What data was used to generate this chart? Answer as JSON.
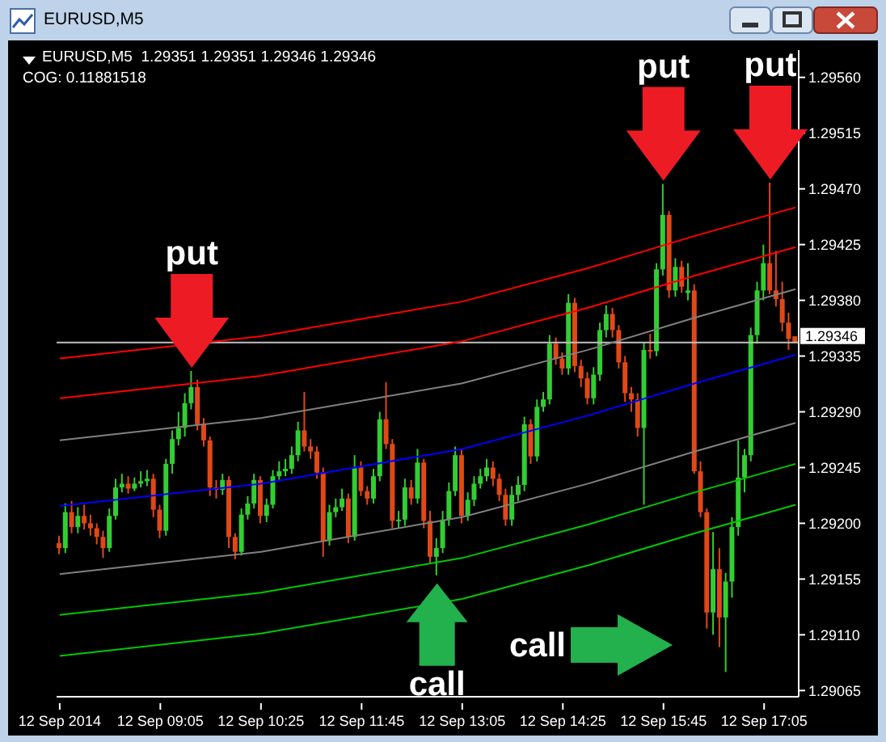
{
  "chart_data": {
    "type": "candlestick",
    "title": "EURUSD,M5",
    "subtitle": "EURUSD,M5  1.29351 1.29351 1.29346 1.29346",
    "annotations": [
      "COG: 0.11881518",
      {
        "text": "put",
        "y": 1.29323
      },
      {
        "text": "put",
        "y": 1.29474
      },
      {
        "text": "put",
        "y": 1.29475
      },
      {
        "text": "call",
        "y": 1.29158
      },
      "call"
    ],
    "categories": [
      "12 Sep 2014",
      null,
      null,
      null,
      null,
      null,
      null,
      null,
      null,
      null,
      null,
      null,
      null,
      null,
      null,
      null,
      "12 Sep 09:05",
      null,
      null,
      null,
      null,
      null,
      null,
      null,
      null,
      null,
      null,
      null,
      null,
      null,
      null,
      null,
      "12 Sep 10:25",
      null,
      null,
      null,
      null,
      null,
      null,
      null,
      null,
      null,
      null,
      null,
      null,
      null,
      null,
      null,
      "12 Sep 11:45",
      null,
      null,
      null,
      null,
      null,
      null,
      null,
      null,
      null,
      null,
      null,
      null,
      null,
      null,
      null,
      "12 Sep 13:05",
      null,
      null,
      null,
      null,
      null,
      null,
      null,
      null,
      null,
      null,
      null,
      null,
      null,
      null,
      null,
      "12 Sep 14:25",
      null,
      null,
      null,
      null,
      null,
      null,
      null,
      null,
      null,
      null,
      null,
      null,
      null,
      null,
      null,
      "12 Sep 15:45",
      null,
      null,
      null,
      null,
      null,
      null,
      null,
      null,
      null,
      null,
      null,
      null,
      null,
      null,
      null,
      "12 Sep 17:05",
      null,
      null,
      null,
      null,
      null
    ],
    "colors": [
      "#e04818",
      "#32cd32",
      "#e04818",
      "#32cd32",
      "#e04818",
      "#e04818",
      "#e04818",
      "#e04818",
      "#32cd32",
      "#32cd32",
      "#32cd32",
      "#e04818",
      "#32cd32",
      "#32cd32",
      "#32cd32",
      "#e04818",
      "#e04818",
      "#32cd32",
      "#32cd32",
      "#32cd32",
      "#32cd32",
      "#32cd32",
      "#e04818",
      "#e04818",
      "#e04818",
      "#e04818",
      "#32cd32",
      "#e04818",
      "#e04818",
      "#32cd32",
      "#32cd32",
      "#32cd32",
      "#e04818",
      "#32cd32",
      "#32cd32",
      "#32cd32",
      "#32cd32",
      "#32cd32",
      "#32cd32",
      "#e04818",
      "#e04818",
      "#e04818",
      "#e04818",
      "#32cd32",
      "#32cd32",
      "#32cd32",
      "#e04818",
      "#32cd32",
      "#e04818",
      "#e04818",
      "#32cd32",
      "#32cd32",
      "#e04818",
      "#e04818",
      "#32cd32",
      "#32cd32",
      "#e04818",
      "#32cd32",
      "#e04818",
      "#e04818",
      "#32cd32",
      "#32cd32",
      "#32cd32",
      "#32cd32",
      "#e04818",
      "#32cd32",
      "#32cd32",
      "#32cd32",
      "#32cd32",
      "#e04818",
      "#e04818",
      "#e04818",
      "#32cd32",
      "#32cd32",
      "#32cd32",
      "#e04818",
      "#32cd32",
      "#32cd32",
      "#32cd32",
      "#e04818",
      "#e04818",
      "#32cd32",
      "#e04818",
      "#e04818",
      "#e04818",
      "#32cd32",
      "#32cd32",
      "#32cd32",
      "#e04818",
      "#e04818",
      "#e04818",
      "#e04818",
      "#e04818",
      "#32cd32",
      "#e04818",
      "#32cd32",
      "#32cd32",
      "#e04818",
      "#32cd32",
      "#e04818",
      "#32cd32",
      "#e04818",
      "#e04818",
      "#e04818",
      "#32cd32",
      "#e04818",
      "#32cd32",
      "#32cd32",
      "#32cd32",
      "#32cd32",
      "#32cd32",
      "#32cd32",
      "#32cd32",
      "#e04818",
      "#e04818",
      "#e04818",
      "#e04818",
      "#e04818"
    ],
    "ohlc": [
      [
        1.29184,
        1.2919,
        1.29175,
        1.2918
      ],
      [
        1.2918,
        1.29216,
        1.29176,
        1.29209
      ],
      [
        1.29209,
        1.29218,
        1.29192,
        1.29197
      ],
      [
        1.29197,
        1.29213,
        1.29192,
        1.29206
      ],
      [
        1.29206,
        1.29215,
        1.29195,
        1.292
      ],
      [
        1.292,
        1.29207,
        1.2919,
        1.29196
      ],
      [
        1.29196,
        1.292,
        1.29183,
        1.29189
      ],
      [
        1.29189,
        1.29194,
        1.29172,
        1.2918
      ],
      [
        1.2918,
        1.29212,
        1.29177,
        1.29206
      ],
      [
        1.29206,
        1.29236,
        1.29203,
        1.29229
      ],
      [
        1.29229,
        1.2924,
        1.29225,
        1.29232
      ],
      [
        1.29232,
        1.29238,
        1.29224,
        1.29228
      ],
      [
        1.29228,
        1.29237,
        1.29226,
        1.29232
      ],
      [
        1.29232,
        1.29242,
        1.29229,
        1.29234
      ],
      [
        1.29234,
        1.29243,
        1.2923,
        1.29236
      ],
      [
        1.29236,
        1.2924,
        1.29205,
        1.29211
      ],
      [
        1.29211,
        1.29215,
        1.29188,
        1.29194
      ],
      [
        1.29194,
        1.29252,
        1.2919,
        1.29248
      ],
      [
        1.29248,
        1.29275,
        1.2924,
        1.29268
      ],
      [
        1.29268,
        1.2929,
        1.29263,
        1.29277
      ],
      [
        1.29277,
        1.29305,
        1.2927,
        1.29297
      ],
      [
        1.29297,
        1.29323,
        1.29292,
        1.2931
      ],
      [
        1.2931,
        1.29316,
        1.29275,
        1.2928
      ],
      [
        1.2928,
        1.29285,
        1.29262,
        1.29267
      ],
      [
        1.29267,
        1.2927,
        1.29222,
        1.29229
      ],
      [
        1.29229,
        1.29235,
        1.2922,
        1.29227
      ],
      [
        1.29227,
        1.2924,
        1.29223,
        1.29235
      ],
      [
        1.29235,
        1.29238,
        1.2918,
        1.29189
      ],
      [
        1.29189,
        1.29192,
        1.29171,
        1.29177
      ],
      [
        1.29177,
        1.29212,
        1.29174,
        1.29207
      ],
      [
        1.29207,
        1.29222,
        1.29203,
        1.29216
      ],
      [
        1.29216,
        1.2924,
        1.29212,
        1.29235
      ],
      [
        1.29235,
        1.29238,
        1.292,
        1.29206
      ],
      [
        1.29206,
        1.2922,
        1.29201,
        1.29215
      ],
      [
        1.29215,
        1.29243,
        1.29212,
        1.29238
      ],
      [
        1.29238,
        1.2925,
        1.29235,
        1.29242
      ],
      [
        1.29242,
        1.29252,
        1.29238,
        1.29244
      ],
      [
        1.29244,
        1.29262,
        1.2924,
        1.29255
      ],
      [
        1.29255,
        1.29282,
        1.2925,
        1.29275
      ],
      [
        1.29275,
        1.29306,
        1.29258,
        1.29262
      ],
      [
        1.29262,
        1.29268,
        1.29252,
        1.29258
      ],
      [
        1.29258,
        1.29262,
        1.29236,
        1.29241
      ],
      [
        1.29241,
        1.29245,
        1.29173,
        1.29186
      ],
      [
        1.29186,
        1.29215,
        1.29182,
        1.29209
      ],
      [
        1.29209,
        1.2922,
        1.29205,
        1.29213
      ],
      [
        1.29213,
        1.29228,
        1.2921,
        1.2922
      ],
      [
        1.2922,
        1.29224,
        1.29184,
        1.29189
      ],
      [
        1.29189,
        1.29255,
        1.29186,
        1.29245
      ],
      [
        1.29245,
        1.2925,
        1.29222,
        1.29226
      ],
      [
        1.29226,
        1.2923,
        1.29215,
        1.2922
      ],
      [
        1.2922,
        1.29244,
        1.29216,
        1.29238
      ],
      [
        1.29238,
        1.2929,
        1.29234,
        1.29284
      ],
      [
        1.29284,
        1.29314,
        1.2926,
        1.29264
      ],
      [
        1.29264,
        1.29268,
        1.29196,
        1.29202
      ],
      [
        1.29202,
        1.2921,
        1.29196,
        1.29203
      ],
      [
        1.29203,
        1.29236,
        1.29198,
        1.29229
      ],
      [
        1.29229,
        1.29235,
        1.29215,
        1.2922
      ],
      [
        1.2922,
        1.2926,
        1.29216,
        1.29249
      ],
      [
        1.29249,
        1.29252,
        1.29196,
        1.29202
      ],
      [
        1.29202,
        1.2921,
        1.29168,
        1.29173
      ],
      [
        1.29173,
        1.29188,
        1.29158,
        1.2918
      ],
      [
        1.2918,
        1.2921,
        1.29176,
        1.29203
      ],
      [
        1.29203,
        1.29233,
        1.29198,
        1.29226
      ],
      [
        1.29226,
        1.29262,
        1.29222,
        1.29255
      ],
      [
        1.29255,
        1.2926,
        1.292,
        1.29206
      ],
      [
        1.29206,
        1.29225,
        1.29202,
        1.29219
      ],
      [
        1.29219,
        1.29238,
        1.29214,
        1.29232
      ],
      [
        1.29232,
        1.29244,
        1.29228,
        1.29238
      ],
      [
        1.29238,
        1.29252,
        1.29234,
        1.29245
      ],
      [
        1.29245,
        1.2925,
        1.2923,
        1.29236
      ],
      [
        1.29236,
        1.2924,
        1.29218,
        1.29223
      ],
      [
        1.29223,
        1.29228,
        1.29198,
        1.29203
      ],
      [
        1.29203,
        1.2923,
        1.29198,
        1.29223
      ],
      [
        1.29223,
        1.29238,
        1.29218,
        1.29231
      ],
      [
        1.29231,
        1.29286,
        1.29226,
        1.2928
      ],
      [
        1.2928,
        1.29284,
        1.29248,
        1.29254
      ],
      [
        1.29254,
        1.293,
        1.2925,
        1.29294
      ],
      [
        1.29294,
        1.29306,
        1.2929,
        1.293
      ],
      [
        1.293,
        1.29352,
        1.29296,
        1.29345
      ],
      [
        1.29345,
        1.2935,
        1.29328,
        1.29333
      ],
      [
        1.29333,
        1.29338,
        1.2932,
        1.29325
      ],
      [
        1.29325,
        1.29385,
        1.2932,
        1.29378
      ],
      [
        1.29378,
        1.29382,
        1.29322,
        1.29327
      ],
      [
        1.29327,
        1.29332,
        1.2931,
        1.29317
      ],
      [
        1.29317,
        1.29322,
        1.29296,
        1.29301
      ],
      [
        1.29301,
        1.29326,
        1.29296,
        1.2932
      ],
      [
        1.2932,
        1.29362,
        1.29315,
        1.29356
      ],
      [
        1.29356,
        1.29376,
        1.2935,
        1.29369
      ],
      [
        1.29369,
        1.29374,
        1.2935,
        1.29356
      ],
      [
        1.29356,
        1.2936,
        1.29325,
        1.2933
      ],
      [
        1.2933,
        1.29335,
        1.29298,
        1.29305
      ],
      [
        1.29305,
        1.2931,
        1.2929,
        1.293
      ],
      [
        1.293,
        1.29305,
        1.2927,
        1.29277
      ],
      [
        1.29277,
        1.29346,
        1.29215,
        1.2934
      ],
      [
        1.2934,
        1.29353,
        1.29333,
        1.29339
      ],
      [
        1.29339,
        1.2941,
        1.29335,
        1.29405
      ],
      [
        1.29405,
        1.29474,
        1.294,
        1.29449
      ],
      [
        1.29449,
        1.29452,
        1.29382,
        1.29388
      ],
      [
        1.29388,
        1.29414,
        1.29383,
        1.29407
      ],
      [
        1.29407,
        1.29412,
        1.29386,
        1.29391
      ],
      [
        1.29386,
        1.2941,
        1.2938,
        1.29388
      ],
      [
        1.29388,
        1.29393,
        1.2924,
        1.29242
      ],
      [
        1.29242,
        1.2925,
        1.29205,
        1.29209
      ],
      [
        1.29209,
        1.29212,
        1.29115,
        1.29128
      ],
      [
        1.29128,
        1.29193,
        1.2911,
        1.29163
      ],
      [
        1.29163,
        1.2918,
        1.291,
        1.29124
      ],
      [
        1.29124,
        1.2916,
        1.2908,
        1.29153
      ],
      [
        1.29153,
        1.29205,
        1.2914,
        1.29197
      ],
      [
        1.29197,
        1.29267,
        1.2919,
        1.29237
      ],
      [
        1.29237,
        1.2926,
        1.29225,
        1.29255
      ],
      [
        1.29255,
        1.29358,
        1.2925,
        1.29352
      ],
      [
        1.29352,
        1.29395,
        1.29345,
        1.29388
      ],
      [
        1.29388,
        1.29425,
        1.2938,
        1.2941
      ],
      [
        1.2941,
        1.29475,
        1.29385,
        1.29388
      ],
      [
        1.29388,
        1.2942,
        1.29375,
        1.29381
      ],
      [
        1.29381,
        1.29395,
        1.29355,
        1.29362
      ],
      [
        1.29362,
        1.2937,
        1.2934,
        1.29349
      ],
      [
        1.29351,
        1.29351,
        1.29346,
        1.29346
      ]
    ],
    "series": [
      {
        "type": "line",
        "color": "#ff0000",
        "values": [
          1.29333,
          null,
          null,
          null,
          null,
          null,
          null,
          null,
          null,
          null,
          null,
          null,
          null,
          null,
          null,
          null,
          null,
          null,
          null,
          null,
          null,
          null,
          null,
          null,
          null,
          null,
          null,
          null,
          null,
          null,
          null,
          null,
          1.29351,
          null,
          null,
          null,
          null,
          null,
          null,
          null,
          null,
          null,
          null,
          null,
          null,
          null,
          null,
          null,
          null,
          null,
          null,
          null,
          null,
          null,
          null,
          null,
          null,
          null,
          null,
          null,
          null,
          null,
          null,
          null,
          1.29379,
          null,
          null,
          null,
          null,
          null,
          null,
          null,
          null,
          null,
          null,
          null,
          null,
          null,
          null,
          null,
          null,
          null,
          null,
          null,
          1.29406,
          null,
          null,
          null,
          null,
          null,
          null,
          null,
          null,
          null,
          null,
          null,
          null,
          null,
          null,
          null,
          null,
          1.29432,
          null,
          null,
          null,
          null,
          null,
          null,
          null,
          null,
          null,
          null,
          null,
          null,
          null,
          null,
          null,
          1.29455
        ]
      },
      {
        "type": "line",
        "color": "#ff0000",
        "values": [
          1.29301,
          null,
          null,
          null,
          null,
          null,
          null,
          null,
          null,
          null,
          null,
          null,
          null,
          null,
          null,
          null,
          null,
          null,
          null,
          null,
          null,
          null,
          null,
          null,
          null,
          null,
          null,
          null,
          null,
          null,
          null,
          null,
          1.29319,
          null,
          null,
          null,
          null,
          null,
          null,
          null,
          null,
          null,
          null,
          null,
          null,
          null,
          null,
          null,
          null,
          null,
          null,
          null,
          null,
          null,
          null,
          null,
          null,
          null,
          null,
          null,
          null,
          null,
          null,
          null,
          1.29347,
          null,
          null,
          null,
          null,
          null,
          null,
          null,
          null,
          null,
          null,
          null,
          null,
          null,
          null,
          null,
          null,
          null,
          null,
          null,
          1.29374,
          null,
          null,
          null,
          null,
          null,
          null,
          null,
          null,
          null,
          null,
          null,
          null,
          null,
          null,
          null,
          null,
          1.294,
          null,
          null,
          null,
          null,
          null,
          null,
          null,
          null,
          null,
          null,
          null,
          null,
          null,
          null,
          null,
          1.29423
        ]
      },
      {
        "type": "line",
        "color": "#808080",
        "values": [
          1.29267,
          null,
          null,
          null,
          null,
          null,
          null,
          null,
          null,
          null,
          null,
          null,
          null,
          null,
          null,
          null,
          null,
          null,
          null,
          null,
          null,
          null,
          null,
          null,
          null,
          null,
          null,
          null,
          null,
          null,
          null,
          null,
          1.29285,
          null,
          null,
          null,
          null,
          null,
          null,
          null,
          null,
          null,
          null,
          null,
          null,
          null,
          null,
          null,
          null,
          null,
          null,
          null,
          null,
          null,
          null,
          null,
          null,
          null,
          null,
          null,
          null,
          null,
          null,
          null,
          1.29313,
          null,
          null,
          null,
          null,
          null,
          null,
          null,
          null,
          null,
          null,
          null,
          null,
          null,
          null,
          null,
          null,
          null,
          null,
          null,
          1.2934,
          null,
          null,
          null,
          null,
          null,
          null,
          null,
          null,
          null,
          null,
          null,
          null,
          null,
          null,
          null,
          null,
          1.29366,
          null,
          null,
          null,
          null,
          null,
          null,
          null,
          null,
          null,
          null,
          null,
          null,
          null,
          null,
          null,
          1.29389
        ]
      },
      {
        "type": "line",
        "color": "#0000ff",
        "values": [
          1.29214,
          null,
          null,
          null,
          null,
          null,
          null,
          null,
          null,
          null,
          null,
          null,
          null,
          null,
          null,
          null,
          null,
          null,
          null,
          null,
          null,
          null,
          null,
          null,
          null,
          null,
          null,
          null,
          null,
          null,
          null,
          null,
          1.29232,
          null,
          null,
          null,
          null,
          null,
          null,
          null,
          null,
          null,
          null,
          null,
          null,
          null,
          null,
          null,
          null,
          null,
          null,
          null,
          null,
          null,
          null,
          null,
          null,
          null,
          null,
          null,
          null,
          null,
          null,
          null,
          1.2926,
          null,
          null,
          null,
          null,
          null,
          null,
          null,
          null,
          null,
          null,
          null,
          null,
          null,
          null,
          null,
          null,
          null,
          null,
          null,
          1.29287,
          null,
          null,
          null,
          null,
          null,
          null,
          null,
          null,
          null,
          null,
          null,
          null,
          null,
          null,
          null,
          null,
          1.29313,
          null,
          null,
          null,
          null,
          null,
          null,
          null,
          null,
          null,
          null,
          null,
          null,
          null,
          null,
          null,
          1.29336
        ]
      },
      {
        "type": "line",
        "color": "#808080",
        "values": [
          1.29159,
          null,
          null,
          null,
          null,
          null,
          null,
          null,
          null,
          null,
          null,
          null,
          null,
          null,
          null,
          null,
          null,
          null,
          null,
          null,
          null,
          null,
          null,
          null,
          null,
          null,
          null,
          null,
          null,
          null,
          null,
          null,
          1.29177,
          null,
          null,
          null,
          null,
          null,
          null,
          null,
          null,
          null,
          null,
          null,
          null,
          null,
          null,
          null,
          null,
          null,
          null,
          null,
          null,
          null,
          null,
          null,
          null,
          null,
          null,
          null,
          null,
          null,
          null,
          null,
          1.29205,
          null,
          null,
          null,
          null,
          null,
          null,
          null,
          null,
          null,
          null,
          null,
          null,
          null,
          null,
          null,
          null,
          null,
          null,
          null,
          1.29232,
          null,
          null,
          null,
          null,
          null,
          null,
          null,
          null,
          null,
          null,
          null,
          null,
          null,
          null,
          null,
          null,
          1.29258,
          null,
          null,
          null,
          null,
          null,
          null,
          null,
          null,
          null,
          null,
          null,
          null,
          null,
          null,
          null,
          1.29281
        ]
      },
      {
        "type": "line",
        "color": "#00c800",
        "values": [
          1.29126,
          null,
          null,
          null,
          null,
          null,
          null,
          null,
          null,
          null,
          null,
          null,
          null,
          null,
          null,
          null,
          null,
          null,
          null,
          null,
          null,
          null,
          null,
          null,
          null,
          null,
          null,
          null,
          null,
          null,
          null,
          null,
          1.29144,
          null,
          null,
          null,
          null,
          null,
          null,
          null,
          null,
          null,
          null,
          null,
          null,
          null,
          null,
          null,
          null,
          null,
          null,
          null,
          null,
          null,
          null,
          null,
          null,
          null,
          null,
          null,
          null,
          null,
          null,
          null,
          1.29172,
          null,
          null,
          null,
          null,
          null,
          null,
          null,
          null,
          null,
          null,
          null,
          null,
          null,
          null,
          null,
          null,
          null,
          null,
          null,
          1.29199,
          null,
          null,
          null,
          null,
          null,
          null,
          null,
          null,
          null,
          null,
          null,
          null,
          null,
          null,
          null,
          null,
          1.29225,
          null,
          null,
          null,
          null,
          null,
          null,
          null,
          null,
          null,
          null,
          null,
          null,
          null,
          null,
          null,
          1.29248
        ]
      },
      {
        "type": "line",
        "color": "#00c800",
        "values": [
          1.29093,
          null,
          null,
          null,
          null,
          null,
          null,
          null,
          null,
          null,
          null,
          null,
          null,
          null,
          null,
          null,
          null,
          null,
          null,
          null,
          null,
          null,
          null,
          null,
          null,
          null,
          null,
          null,
          null,
          null,
          null,
          null,
          1.29111,
          null,
          null,
          null,
          null,
          null,
          null,
          null,
          null,
          null,
          null,
          null,
          null,
          null,
          null,
          null,
          null,
          null,
          null,
          null,
          null,
          null,
          null,
          null,
          null,
          null,
          null,
          null,
          null,
          null,
          null,
          null,
          1.29139,
          null,
          null,
          null,
          null,
          null,
          null,
          null,
          null,
          null,
          null,
          null,
          null,
          null,
          null,
          null,
          null,
          null,
          null,
          null,
          1.29166,
          null,
          null,
          null,
          null,
          null,
          null,
          null,
          null,
          null,
          null,
          null,
          null,
          null,
          null,
          null,
          null,
          1.29192,
          null,
          null,
          null,
          null,
          null,
          null,
          null,
          null,
          null,
          null,
          null,
          null,
          null,
          null,
          null,
          1.29215
        ]
      }
    ],
    "ref_lines": [
      {
        "axis": "y",
        "value": 1.29346,
        "label": "1.29346",
        "color": "#c0c0c0"
      }
    ],
    "ylim": [
      1.2906,
      1.29582
    ],
    "yticks": [
      1.29065,
      {
        "value": 1.2911,
        "label": "1.29110"
      },
      1.29155,
      {
        "value": 1.292,
        "label": "1.29200"
      },
      1.29245,
      {
        "value": 1.2929,
        "label": "1.29290"
      },
      1.29335,
      {
        "value": 1.2938,
        "label": "1.29380"
      },
      1.29425,
      {
        "value": 1.2947,
        "label": "1.29470"
      },
      1.29515,
      {
        "value": 1.2956,
        "label": "1.29560"
      }
    ]
  }
}
